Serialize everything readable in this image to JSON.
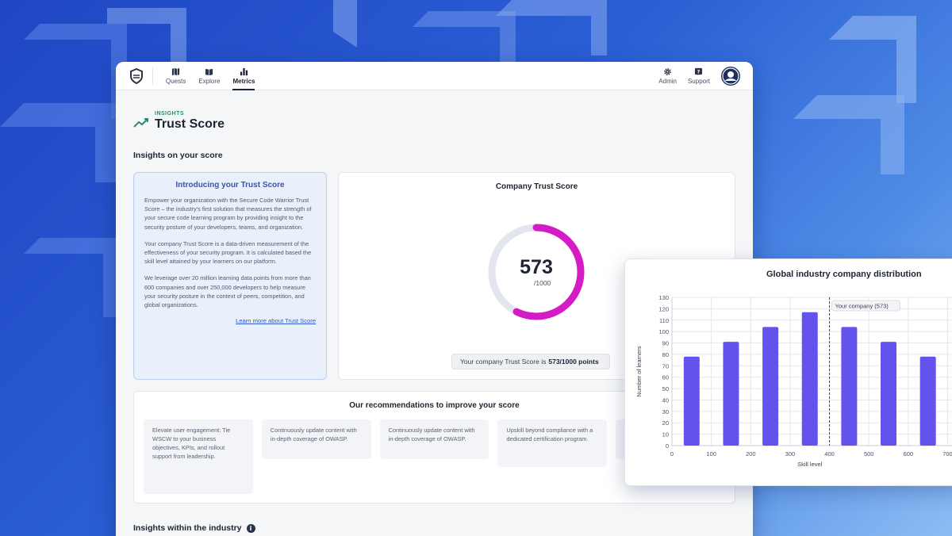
{
  "nav": {
    "items": [
      {
        "label": "Quests",
        "icon": "map-icon",
        "active": false
      },
      {
        "label": "Explore",
        "icon": "book-icon",
        "active": false
      },
      {
        "label": "Metrics",
        "icon": "bar-chart-icon",
        "active": true
      }
    ],
    "right": [
      {
        "label": "Admin",
        "icon": "gear-icon"
      },
      {
        "label": "Support",
        "icon": "help-icon"
      }
    ]
  },
  "header": {
    "eyebrow": "INSIGHTS",
    "title": "Trust Score"
  },
  "insights_title": "Insights on your score",
  "intro": {
    "title": "Introducing your Trust Score",
    "paragraphs": [
      "Empower your organization with the Secure Code Warrior Trust Score – the industry's first solution that measures the strength of your secure code learning program by providing insight to the security posture of your developers, teams, and organization.",
      "Your company Trust Score is a data-driven measurement of the effectiveness of your security program. It is calculated based the skill level attained by your learners on our platform.",
      "We leverage over 20 million learning data points from more than 600 companies and over 250,000 developers to help measure your security posture in the context of peers, competition, and global organizations."
    ],
    "link": "Learn more about Trust Score"
  },
  "score": {
    "title": "Company Trust Score",
    "value": "573",
    "max": "/1000",
    "fraction": 0.573,
    "pill_prefix": "Your company Trust Score is",
    "pill_value": "573/1000 points",
    "colors": {
      "arc": "#d41bc6",
      "track": "#e3e6ef"
    }
  },
  "recommendations": {
    "title": "Our recommendations to improve your score",
    "items": [
      "Elevate user engagement: Tie WSCW to your business objectives, KPIs, and rollout support from leadership.",
      "Continuously update content with in-depth coverage of OWASP.",
      "Continuously update content with in-depth coverage of OWASP.",
      "Upskill beyond compliance with a dedicated certification program."
    ]
  },
  "industry_title": "Insights within the industry",
  "distribution": {
    "title": "Global industry company distribution"
  },
  "chart_data": {
    "type": "bar",
    "title": "Global industry company distribution",
    "xlabel": "Skill level",
    "ylabel": "Number of learners",
    "x": [
      50,
      150,
      250,
      350,
      450,
      550,
      650
    ],
    "values": [
      78,
      91,
      104,
      117,
      104,
      91,
      78
    ],
    "ylim": [
      0,
      130
    ],
    "yticks": [
      0,
      10,
      20,
      30,
      40,
      50,
      60,
      70,
      80,
      90,
      100,
      110,
      120,
      130
    ],
    "xticks": [
      0,
      100,
      200,
      300,
      400,
      500,
      600,
      700
    ],
    "grid": true,
    "bar_color": "#6352ec",
    "marker": {
      "x": 400,
      "label": "Your company (573)"
    }
  }
}
